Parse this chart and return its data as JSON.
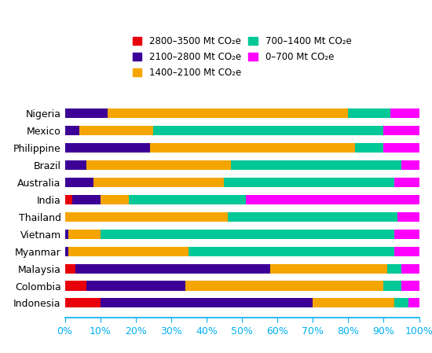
{
  "countries": [
    "Nigeria",
    "Mexico",
    "Philippine",
    "Brazil",
    "Australia",
    "India",
    "Thailand",
    "Vietnam",
    "Myanmar",
    "Malaysia",
    "Colombia",
    "Indonesia"
  ],
  "segments": {
    "2800-3500": {
      "color": "#e8000b",
      "label": "2800–3500 Mt CO₂e",
      "values": [
        0,
        0,
        0,
        0,
        0,
        2,
        0,
        0,
        0,
        3,
        6,
        10
      ]
    },
    "2100-2800": {
      "color": "#3d0096",
      "label": "2100–2800 Mt CO₂e",
      "values": [
        12,
        4,
        24,
        6,
        8,
        8,
        0,
        1,
        1,
        55,
        28,
        60
      ]
    },
    "1400-2100": {
      "color": "#f5a500",
      "label": "1400–2100 Mt CO₂e",
      "values": [
        68,
        21,
        58,
        41,
        37,
        8,
        46,
        9,
        34,
        33,
        56,
        23
      ]
    },
    "700-1400": {
      "color": "#00c896",
      "label": "700–1400 Mt CO₂e",
      "values": [
        12,
        65,
        8,
        48,
        48,
        33,
        48,
        83,
        58,
        4,
        5,
        4
      ]
    },
    "0-700": {
      "color": "#ff00ff",
      "label": "0–700 Mt CO₂e",
      "values": [
        8,
        10,
        10,
        5,
        7,
        49,
        6,
        7,
        7,
        5,
        5,
        3
      ]
    }
  },
  "background_color": "#ffffff",
  "bar_height": 0.55,
  "tick_color": "#00b0f0",
  "spine_color": "#00b0f0",
  "xlabel_fontsize": 9,
  "ylabel_fontsize": 9,
  "legend_fontsize": 8.5
}
